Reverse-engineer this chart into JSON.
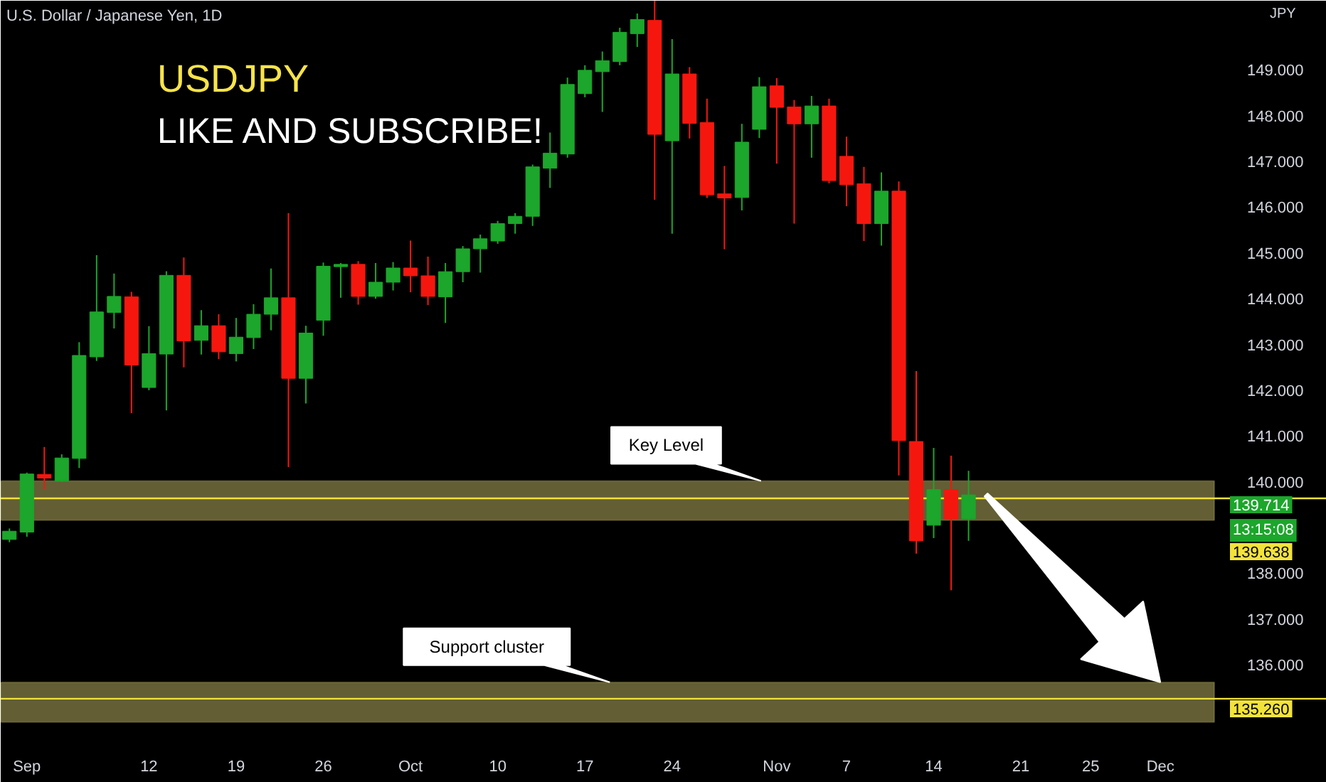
{
  "chart_data": {
    "type": "candlestick",
    "title": "U.S. Dollar / Japanese Yen, 1D",
    "subtitle": "USDJPY",
    "ylabel": "JPY",
    "annotations": [
      "LIKE AND SUBSCRIBE!",
      {
        "text": "139.714",
        "y": 139.714
      },
      {
        "text": "13:15:08",
        "y": 139.714
      }
    ],
    "categories": [
      null,
      "Sep",
      null,
      null,
      null,
      null,
      null,
      null,
      "12",
      null,
      null,
      null,
      null,
      "19",
      null,
      null,
      null,
      null,
      "26",
      null,
      null,
      null,
      null,
      "Oct",
      null,
      null,
      null,
      null,
      "10",
      null,
      null,
      null,
      null,
      "17",
      null,
      null,
      null,
      null,
      "24",
      null,
      null,
      null,
      null,
      null,
      "Nov",
      null,
      null,
      null,
      "7",
      null,
      null,
      null,
      null,
      "14",
      null,
      null,
      null,
      null,
      "21",
      null,
      null,
      null,
      "25",
      null,
      null,
      null,
      "Dec",
      null,
      null,
      null
    ],
    "ohlc": [
      [
        138.74,
        138.98,
        138.68,
        138.92
      ],
      [
        138.9,
        140.2,
        138.8,
        140.17
      ],
      [
        140.16,
        140.76,
        139.84,
        140.08
      ],
      [
        140.02,
        140.6,
        140.0,
        140.52
      ],
      [
        140.51,
        143.05,
        140.3,
        142.76
      ],
      [
        142.73,
        144.95,
        142.64,
        143.71
      ],
      [
        143.7,
        144.55,
        143.35,
        144.05
      ],
      [
        144.04,
        144.15,
        141.5,
        142.55
      ],
      [
        142.06,
        143.4,
        142.0,
        142.8
      ],
      [
        142.79,
        144.6,
        141.56,
        144.51
      ],
      [
        144.51,
        144.9,
        142.5,
        143.08
      ],
      [
        143.09,
        143.75,
        142.78,
        143.41
      ],
      [
        143.41,
        143.66,
        142.68,
        142.84
      ],
      [
        142.8,
        143.58,
        142.63,
        143.16
      ],
      [
        143.15,
        143.88,
        142.9,
        143.66
      ],
      [
        143.66,
        144.66,
        143.31,
        144.02
      ],
      [
        144.02,
        145.87,
        140.32,
        142.26
      ],
      [
        142.26,
        143.41,
        141.71,
        143.25
      ],
      [
        143.53,
        144.79,
        143.19,
        144.71
      ],
      [
        144.7,
        144.78,
        144.02,
        144.75
      ],
      [
        144.75,
        144.82,
        143.87,
        144.05
      ],
      [
        144.05,
        144.78,
        144.0,
        144.36
      ],
      [
        144.36,
        144.8,
        144.18,
        144.67
      ],
      [
        144.67,
        145.27,
        144.14,
        144.5
      ],
      [
        144.5,
        144.92,
        143.86,
        144.05
      ],
      [
        144.04,
        144.78,
        143.47,
        144.59
      ],
      [
        144.59,
        145.15,
        144.36,
        145.09
      ],
      [
        145.09,
        145.4,
        144.57,
        145.31
      ],
      [
        145.26,
        145.7,
        145.2,
        145.64
      ],
      [
        145.64,
        145.87,
        145.42,
        145.8
      ],
      [
        145.8,
        146.93,
        145.59,
        146.88
      ],
      [
        146.85,
        147.63,
        146.42,
        147.18
      ],
      [
        147.16,
        148.83,
        147.08,
        148.68
      ],
      [
        148.48,
        149.1,
        148.4,
        148.99
      ],
      [
        148.96,
        149.4,
        148.08,
        149.2
      ],
      [
        149.18,
        149.92,
        149.1,
        149.82
      ],
      [
        149.79,
        150.23,
        149.5,
        150.1
      ],
      [
        150.08,
        150.51,
        146.16,
        147.59
      ],
      [
        147.45,
        149.67,
        145.42,
        148.91
      ],
      [
        148.91,
        149.06,
        147.5,
        147.83
      ],
      [
        147.85,
        148.37,
        146.2,
        146.27
      ],
      [
        146.29,
        146.9,
        145.08,
        146.2
      ],
      [
        146.21,
        147.82,
        145.93,
        147.42
      ],
      [
        147.7,
        148.84,
        147.51,
        148.63
      ],
      [
        148.65,
        148.82,
        146.95,
        148.18
      ],
      [
        148.19,
        148.34,
        145.64,
        147.82
      ],
      [
        147.82,
        148.43,
        147.08,
        148.21
      ],
      [
        148.21,
        148.37,
        146.52,
        146.58
      ],
      [
        147.11,
        147.54,
        146.02,
        146.49
      ],
      [
        146.51,
        146.88,
        145.26,
        145.64
      ],
      [
        145.64,
        146.76,
        145.16,
        146.35
      ],
      [
        146.35,
        146.56,
        140.14,
        140.9
      ],
      [
        140.88,
        142.42,
        138.43,
        138.71
      ],
      [
        139.05,
        140.74,
        138.77,
        139.83
      ],
      [
        139.83,
        140.57,
        137.63,
        139.19
      ],
      [
        139.19,
        140.24,
        138.71,
        139.714
      ],
      null,
      null,
      null,
      null,
      null,
      null,
      null,
      null,
      null,
      null,
      null,
      null,
      null,
      null
    ],
    "colors": [
      "#1ca62b",
      "#1ca62b",
      "#f5170e",
      "#1ca62b",
      "#1ca62b",
      "#1ca62b",
      "#1ca62b",
      "#f5170e",
      "#1ca62b",
      "#1ca62b",
      "#f5170e",
      "#1ca62b",
      "#f5170e",
      "#1ca62b",
      "#1ca62b",
      "#1ca62b",
      "#f5170e",
      "#1ca62b",
      "#1ca62b",
      "#1ca62b",
      "#f5170e",
      "#1ca62b",
      "#1ca62b",
      "#f5170e",
      "#f5170e",
      "#1ca62b",
      "#1ca62b",
      "#1ca62b",
      "#1ca62b",
      "#1ca62b",
      "#1ca62b",
      "#1ca62b",
      "#1ca62b",
      "#1ca62b",
      "#1ca62b",
      "#1ca62b",
      "#1ca62b",
      "#f5170e",
      "#1ca62b",
      "#f5170e",
      "#f5170e",
      "#f5170e",
      "#1ca62b",
      "#1ca62b",
      "#f5170e",
      "#f5170e",
      "#1ca62b",
      "#f5170e",
      "#f5170e",
      "#f5170e",
      "#1ca62b",
      "#f5170e",
      "#f5170e",
      "#1ca62b",
      "#f5170e",
      "#1ca62b",
      null,
      null,
      null,
      null,
      null,
      null,
      null,
      null,
      null,
      null,
      null,
      null,
      null,
      null
    ],
    "ylim": [
      134.14,
      150.51
    ],
    "yticks": [
      {
        "value": 136,
        "label": "136.000"
      },
      {
        "value": 137,
        "label": "137.000"
      },
      {
        "value": 138,
        "label": "138.000"
      },
      {
        "value": 140,
        "label": "140.000"
      },
      {
        "value": 141,
        "label": "141.000"
      },
      {
        "value": 142,
        "label": "142.000"
      },
      {
        "value": 143,
        "label": "143.000"
      },
      {
        "value": 144,
        "label": "144.000"
      },
      {
        "value": 145,
        "label": "145.000"
      },
      {
        "value": 146,
        "label": "146.000"
      },
      {
        "value": 147,
        "label": "147.000"
      },
      {
        "value": 148,
        "label": "148.000"
      },
      {
        "value": 149,
        "label": "149.000"
      }
    ],
    "ref_lines": [
      {
        "axis": "y",
        "value": 139.638,
        "label": "139.638",
        "color": "#f2e33a"
      },
      {
        "axis": "y",
        "value": 135.26,
        "label": "135.260",
        "color": "#f2e33a"
      }
    ],
    "bands": [
      {
        "axis": "y",
        "from": 139.16,
        "to": 140.02,
        "label": "Key Level",
        "color": "#b5ac5e"
      },
      {
        "axis": "y",
        "from": 134.75,
        "to": 135.62,
        "label": "Support cluster",
        "color": "#b5ac5e"
      }
    ]
  }
}
